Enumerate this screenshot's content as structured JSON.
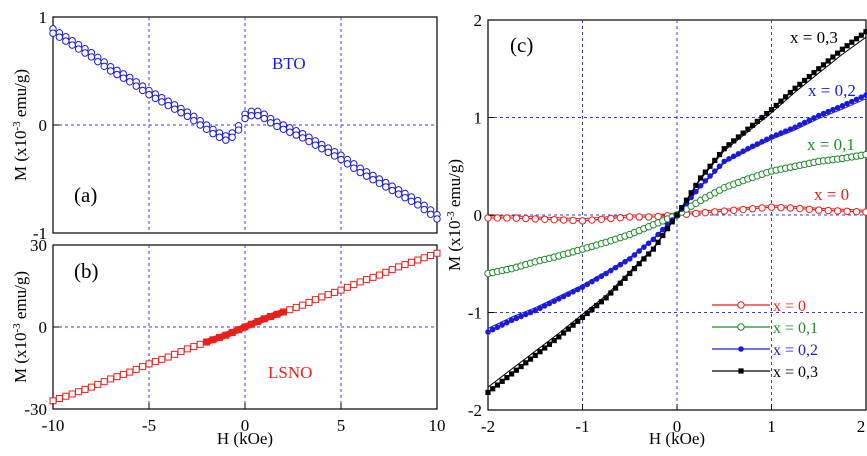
{
  "figure": {
    "left": {
      "xlabel": "H (kOe)",
      "xticks": [
        "-10",
        "-5",
        "0",
        "5",
        "10"
      ]
    },
    "panel_a": {
      "tag": "(a)",
      "sample": "BTO",
      "ylabel": "M (x10",
      "ylabel_sup": "-3",
      "ylabel_unit": " emu/g)",
      "yticks": [
        "-1",
        "0",
        "1"
      ]
    },
    "panel_b": {
      "tag": "(b)",
      "sample": "LSNO",
      "ylabel": "M (x10",
      "ylabel_sup": "-3",
      "ylabel_unit": " emu/g)",
      "yticks": [
        "-30",
        "0",
        "30"
      ]
    },
    "panel_c": {
      "tag": "(c)",
      "xlabel": "H (kOe)",
      "ylabel": "M (x10",
      "ylabel_sup": "-3",
      "ylabel_unit": " emu/g)",
      "xticks": [
        "-2",
        "-1",
        "0",
        "1",
        "2"
      ],
      "yticks": [
        "-2",
        "-1",
        "0",
        "1",
        "2"
      ],
      "curve_labels": [
        "x = 0",
        "x = 0,1",
        "x = 0,2",
        "x = 0,3"
      ],
      "legend": [
        "x = 0",
        "x = 0,1",
        "x = 0,2",
        "x = 0,3"
      ]
    }
  },
  "colors": {
    "x0": "#e8201c",
    "x01": "#1f8a2e",
    "x02": "#1a1adb",
    "x03": "#000000",
    "bto": "#1a1adb",
    "lsno": "#e8201c",
    "grid": "#3b3bd9"
  },
  "chart_data": [
    {
      "type": "scatter",
      "panel": "(a)",
      "xlabel": "H (kOe)",
      "ylabel": "M (x10-3 emu/g)",
      "xlim": [
        -10,
        10
      ],
      "ylim": [
        -1,
        1
      ],
      "grid": true,
      "series": [
        {
          "name": "BTO",
          "marker": "open-circle",
          "color": "#1a1adb",
          "x": [
            -10,
            -9,
            -8,
            -7,
            -6,
            -5,
            -4,
            -3,
            -2,
            -1.5,
            -1,
            -0.5,
            0,
            0.5,
            1,
            1.5,
            2,
            3,
            4,
            5,
            6,
            7,
            8,
            9,
            10
          ],
          "y": [
            0.87,
            0.76,
            0.65,
            0.52,
            0.42,
            0.3,
            0.2,
            0.1,
            -0.02,
            -0.08,
            -0.12,
            -0.08,
            0.08,
            0.12,
            0.08,
            0.02,
            -0.02,
            -0.1,
            -0.2,
            -0.3,
            -0.42,
            -0.52,
            -0.62,
            -0.72,
            -0.85
          ]
        }
      ]
    },
    {
      "type": "scatter",
      "panel": "(b)",
      "xlabel": "H (kOe)",
      "ylabel": "M (x10-3 emu/g)",
      "xlim": [
        -10,
        10
      ],
      "ylim": [
        -30,
        30
      ],
      "grid": true,
      "series": [
        {
          "name": "LSNO",
          "marker": "open-square",
          "color": "#e8201c",
          "x": [
            -10,
            -9,
            -8,
            -7,
            -6,
            -5,
            -4,
            -3,
            -2,
            -1,
            0,
            1,
            2,
            3,
            4,
            5,
            6,
            7,
            8,
            9,
            10
          ],
          "y": [
            -27,
            -24.5,
            -22,
            -19,
            -16.5,
            -13.5,
            -11,
            -8,
            -5.5,
            -3,
            0,
            3,
            5.5,
            8,
            11,
            13.5,
            16.5,
            19,
            22,
            24.5,
            27
          ]
        }
      ]
    },
    {
      "type": "line",
      "panel": "(c)",
      "xlabel": "H (kOe)",
      "ylabel": "M (x10-3 emu/g)",
      "xlim": [
        -2,
        2
      ],
      "ylim": [
        -2,
        2
      ],
      "grid": true,
      "legend_position": "bottom-right",
      "x": [
        -2,
        -1.75,
        -1.5,
        -1.25,
        -1,
        -0.75,
        -0.5,
        -0.25,
        0,
        0.25,
        0.5,
        0.75,
        1,
        1.25,
        1.5,
        1.75,
        2
      ],
      "series": [
        {
          "name": "x = 0",
          "marker": "open-circle",
          "color": "#e8201c",
          "y": [
            -0.03,
            -0.03,
            -0.04,
            -0.05,
            -0.06,
            -0.04,
            -0.02,
            -0.02,
            0.0,
            0.02,
            0.04,
            0.06,
            0.08,
            0.07,
            0.05,
            0.04,
            0.03
          ]
        },
        {
          "name": "x = 0,1",
          "marker": "open-circle",
          "color": "#1f8a2e",
          "y": [
            -0.6,
            -0.55,
            -0.48,
            -0.42,
            -0.35,
            -0.28,
            -0.2,
            -0.1,
            0.0,
            0.15,
            0.28,
            0.37,
            0.45,
            0.5,
            0.55,
            0.58,
            0.62
          ]
        },
        {
          "name": "x = 0,2",
          "marker": "filled-circle",
          "color": "#1a1adb",
          "y": [
            -1.2,
            -1.08,
            -0.98,
            -0.86,
            -0.74,
            -0.6,
            -0.45,
            -0.25,
            0.0,
            0.3,
            0.55,
            0.68,
            0.8,
            0.9,
            1.02,
            1.12,
            1.23
          ]
        },
        {
          "name": "x = 0,3",
          "marker": "filled-square",
          "color": "#000000",
          "y": [
            -1.82,
            -1.63,
            -1.44,
            -1.25,
            -1.05,
            -0.85,
            -0.6,
            -0.35,
            0.0,
            0.38,
            0.68,
            0.88,
            1.08,
            1.3,
            1.5,
            1.7,
            1.88
          ]
        }
      ]
    }
  ]
}
